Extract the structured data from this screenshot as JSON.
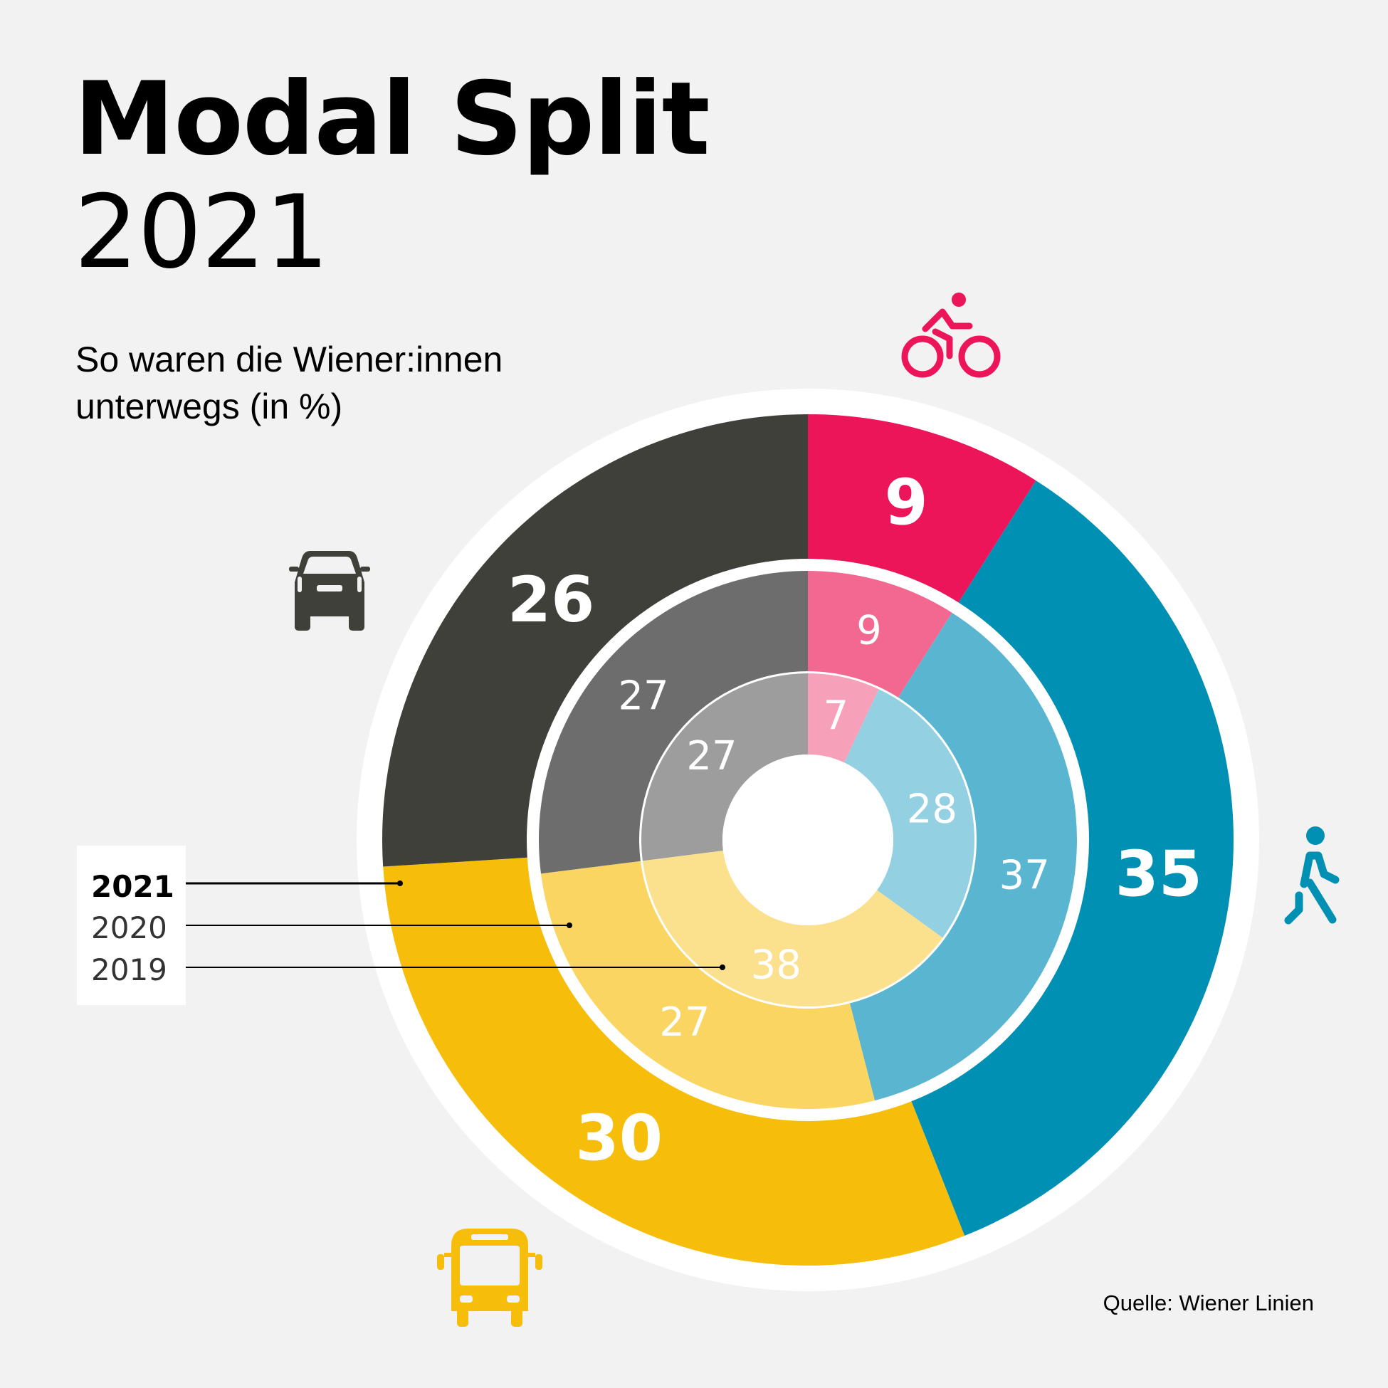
{
  "header": {
    "title": "Modal Split",
    "year": "2021",
    "subtitle": "So waren die Wiener:innen unterwegs (in %)"
  },
  "legend": {
    "items": [
      "2021",
      "2020",
      "2019"
    ]
  },
  "source": "Quelle: Wiener Linien",
  "icons": {
    "bike": "bicycle-icon",
    "walk": "pedestrian-icon",
    "car": "car-icon",
    "bus": "bus-icon"
  },
  "colors": {
    "bike": [
      "#ec1559",
      "#f36891",
      "#f7a0ba"
    ],
    "walk": [
      "#0090b3",
      "#5ab6d0",
      "#93d0e2"
    ],
    "car": [
      "#40403b",
      "#6d6d6d",
      "#9d9d9d"
    ],
    "public": [
      "#f6be0b",
      "#fad561",
      "#fbe08d"
    ],
    "background": "#f2f2f2"
  },
  "chart_data": {
    "type": "pie",
    "subtype": "nested-donut",
    "categories": [
      "Rad",
      "Zu Fuß",
      "Öffis",
      "Auto"
    ],
    "series": [
      {
        "name": "2021",
        "values": [
          9,
          35,
          30,
          26
        ]
      },
      {
        "name": "2020",
        "values": [
          9,
          37,
          27,
          27
        ]
      },
      {
        "name": "2019",
        "values": [
          7,
          28,
          38,
          27
        ]
      }
    ]
  }
}
